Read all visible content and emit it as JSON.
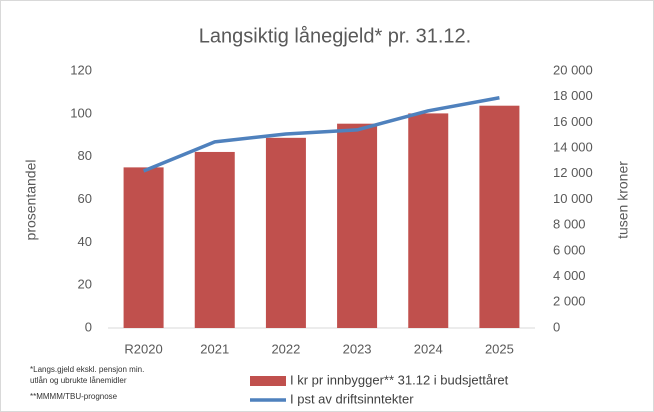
{
  "chart_data": {
    "type": "bar_line",
    "title": "Langsiktig lånegjeld* pr. 31.12.",
    "y_label": "prosentandel",
    "y2_label": "tusen kroner",
    "categories": [
      "R2020",
      "2021",
      "2022",
      "2023",
      "2024",
      "2025"
    ],
    "series": [
      {
        "name": "I kr pr innbygger** 31.12 i budsjettåret",
        "color": "#c0504d",
        "kind": "bar",
        "axis": "y2",
        "values": [
          12500,
          13700,
          14800,
          15900,
          16700,
          17300
        ]
      },
      {
        "name": "I pst av driftsinntekter",
        "color": "#4f81bd",
        "kind": "line",
        "axis": "y",
        "values": [
          73.3,
          86.9,
          90.6,
          92.5,
          101.4,
          107.5
        ]
      }
    ],
    "ylim": [
      0,
      120
    ],
    "yticks": [
      0,
      20,
      40,
      60,
      80,
      100,
      120
    ],
    "y2lim": [
      0,
      20000
    ],
    "y2ticks": [
      0,
      {
        "value": 2000,
        "label": "2 000"
      },
      {
        "value": 4000,
        "label": "4 000"
      },
      {
        "value": 6000,
        "label": "6 000"
      },
      {
        "value": 8000,
        "label": "8 000"
      },
      {
        "value": 10000,
        "label": "10 000"
      },
      {
        "value": 12000,
        "label": "12 000"
      },
      {
        "value": 14000,
        "label": "14 000"
      },
      {
        "value": 16000,
        "label": "16 000"
      },
      {
        "value": 18000,
        "label": "18 000"
      },
      {
        "value": 20000,
        "label": "20 000"
      }
    ],
    "notes": [
      "*Langs.gjeld ekskl. pensjon min.",
      "utlån og ubrukte lånemidler",
      "**MMMM/TBU-prognose"
    ]
  }
}
